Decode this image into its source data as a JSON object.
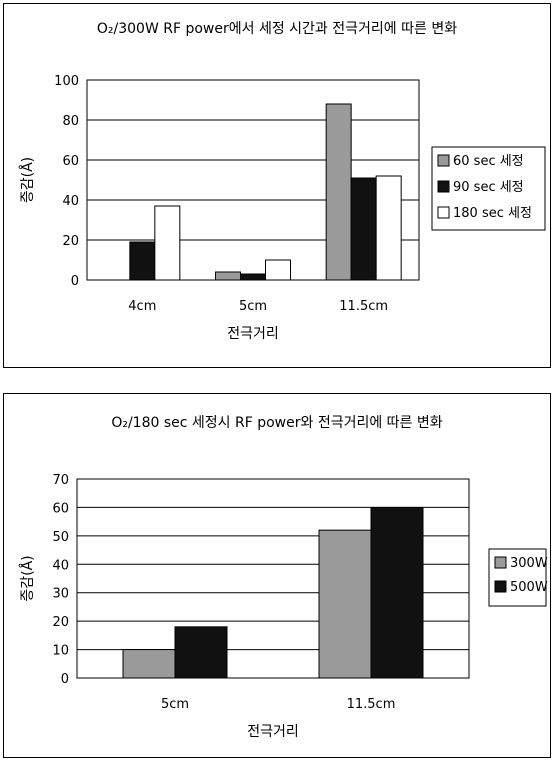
{
  "colors": {
    "gray": "#9a9a9a",
    "black": "#111111",
    "white": "#ffffff",
    "grid": "#000000"
  },
  "chart_data": [
    {
      "type": "bar",
      "title": "O₂/300W RF power에서 세정 시간과 전극거리에 따른 변화",
      "xlabel": "전극거리",
      "ylabel": "증감(Å)",
      "categories": [
        "4cm",
        "5cm",
        "11.5cm"
      ],
      "ylim": [
        0,
        100
      ],
      "yticks": [
        "0",
        "20",
        "40",
        "60",
        "80",
        "100"
      ],
      "legend_position": "right",
      "series": [
        {
          "name": "60 sec 세정",
          "values": [
            0,
            4,
            88
          ],
          "color": "gray"
        },
        {
          "name": "90 sec 세정",
          "values": [
            19,
            3,
            51
          ],
          "color": "black"
        },
        {
          "name": "180 sec 세정",
          "values": [
            37,
            10,
            52
          ],
          "color": "white"
        }
      ]
    },
    {
      "type": "bar",
      "title": "O₂/180 sec 세정시 RF power와 전극거리에 따른 변화",
      "xlabel": "전극거리",
      "ylabel": "증감(Å)",
      "categories": [
        "5cm",
        "11.5cm"
      ],
      "ylim": [
        0,
        70
      ],
      "yticks": [
        "0",
        "10",
        "20",
        "30",
        "40",
        "50",
        "60",
        "70"
      ],
      "legend_position": "right",
      "series": [
        {
          "name": "300W",
          "values": [
            10,
            52
          ],
          "color": "gray"
        },
        {
          "name": "500W",
          "values": [
            18,
            60
          ],
          "color": "black"
        }
      ]
    }
  ]
}
